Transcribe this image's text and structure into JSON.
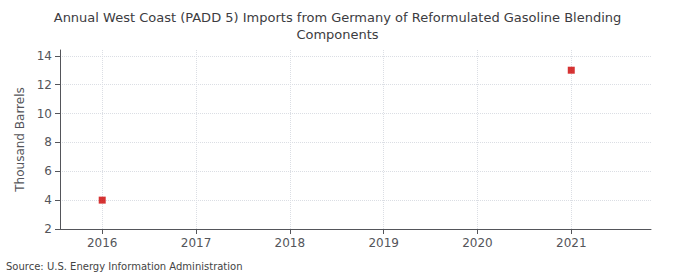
{
  "chart_data": {
    "type": "scatter",
    "title": "Annual West Coast (PADD 5) Imports from Germany of Reformulated Gasoline Blending\nComponents",
    "ylabel": "Thousand Barrels",
    "source": "Source: U.S. Energy Information Administration",
    "x": [
      2016,
      2021
    ],
    "values": [
      4,
      13
    ],
    "color": "#cc0000",
    "marker": "square",
    "xlim": [
      2015.55,
      2021.85
    ],
    "xticks": [
      2016,
      2017,
      2018,
      2019,
      2020,
      2021
    ],
    "ylim": [
      2,
      14.4
    ],
    "yticks": [
      2,
      4,
      6,
      8,
      10,
      12,
      14
    ],
    "grid": true
  }
}
